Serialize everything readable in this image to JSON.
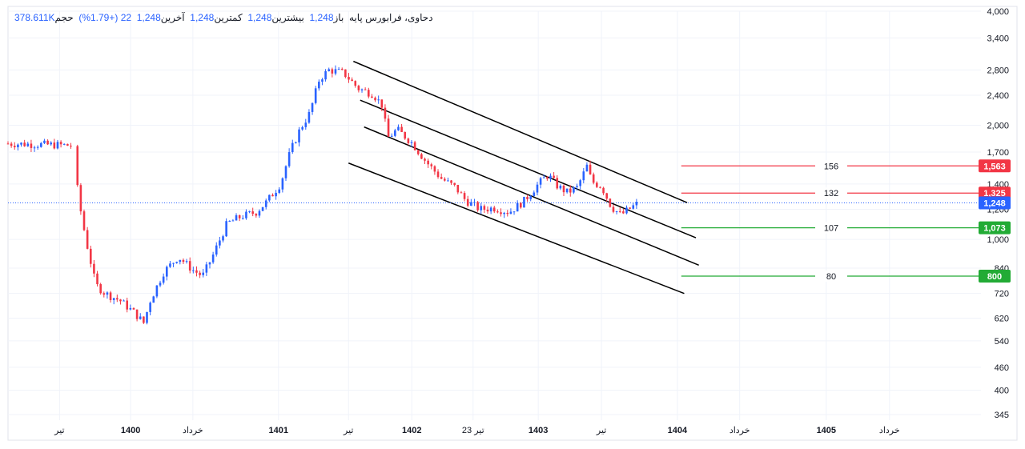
{
  "legend": {
    "symbol": "دحاوی، فرابورس پایه",
    "open_label": "باز",
    "open": "1,248",
    "high_label": "بیشترین",
    "high": "1,248",
    "low_label": "کمترین",
    "low": "1,248",
    "close_label": "آخرین",
    "close": "1,248",
    "change": "22 (+1.79%)",
    "volume_label": "حجم",
    "volume": "378.611K"
  },
  "chart_data": {
    "type": "candlestick",
    "scale": "log",
    "ylim": [
      310,
      4000
    ],
    "y_ticks": [
      345,
      400,
      460,
      540,
      620,
      720,
      840,
      1000,
      1200,
      1400,
      1700,
      2000,
      2400,
      2800,
      3400,
      4000
    ],
    "x_ticks": [
      {
        "label": "تیر",
        "bold": false,
        "pos": 0.053
      },
      {
        "label": "1400",
        "bold": true,
        "pos": 0.126
      },
      {
        "label": "خرداد",
        "bold": false,
        "pos": 0.19
      },
      {
        "label": "1401",
        "bold": true,
        "pos": 0.278
      },
      {
        "label": "تیر",
        "bold": false,
        "pos": 0.35
      },
      {
        "label": "1402",
        "bold": true,
        "pos": 0.415
      },
      {
        "label": "23 تیر",
        "bold": false,
        "pos": 0.478
      },
      {
        "label": "1403",
        "bold": true,
        "pos": 0.545
      },
      {
        "label": "تیر",
        "bold": false,
        "pos": 0.61
      },
      {
        "label": "1404",
        "bold": true,
        "pos": 0.688
      },
      {
        "label": "خرداد",
        "bold": false,
        "pos": 0.752
      },
      {
        "label": "1405",
        "bold": true,
        "pos": 0.841
      },
      {
        "label": "خرداد",
        "bold": false,
        "pos": 0.906
      }
    ],
    "price_path": [
      [
        0.0,
        1790
      ],
      [
        0.065,
        1770
      ],
      [
        0.068,
        1760
      ],
      [
        0.072,
        1300
      ],
      [
        0.08,
        1000
      ],
      [
        0.09,
        760
      ],
      [
        0.1,
        720
      ],
      [
        0.115,
        690
      ],
      [
        0.13,
        640
      ],
      [
        0.14,
        600
      ],
      [
        0.145,
        680
      ],
      [
        0.16,
        820
      ],
      [
        0.175,
        900
      ],
      [
        0.19,
        830
      ],
      [
        0.2,
        800
      ],
      [
        0.21,
        900
      ],
      [
        0.225,
        1100
      ],
      [
        0.24,
        1150
      ],
      [
        0.255,
        1180
      ],
      [
        0.265,
        1250
      ],
      [
        0.28,
        1400
      ],
      [
        0.29,
        1700
      ],
      [
        0.3,
        1950
      ],
      [
        0.31,
        2150
      ],
      [
        0.32,
        2650
      ],
      [
        0.33,
        2800
      ],
      [
        0.345,
        2750
      ],
      [
        0.36,
        2500
      ],
      [
        0.375,
        2420
      ],
      [
        0.385,
        2250
      ],
      [
        0.39,
        1850
      ],
      [
        0.4,
        1950
      ],
      [
        0.415,
        1800
      ],
      [
        0.43,
        1600
      ],
      [
        0.445,
        1450
      ],
      [
        0.46,
        1370
      ],
      [
        0.47,
        1270
      ],
      [
        0.485,
        1200
      ],
      [
        0.5,
        1210
      ],
      [
        0.515,
        1180
      ],
      [
        0.53,
        1260
      ],
      [
        0.545,
        1400
      ],
      [
        0.555,
        1480
      ],
      [
        0.565,
        1380
      ],
      [
        0.575,
        1330
      ],
      [
        0.585,
        1370
      ],
      [
        0.595,
        1560
      ],
      [
        0.6,
        1420
      ],
      [
        0.61,
        1380
      ],
      [
        0.62,
        1220
      ],
      [
        0.63,
        1160
      ],
      [
        0.64,
        1210
      ],
      [
        0.648,
        1248
      ]
    ],
    "current_price": 1248,
    "current_price_label": "1,248",
    "levels": [
      {
        "value": 1563,
        "label": "156",
        "tag": "1,563",
        "color": "#f23645"
      },
      {
        "value": 1325,
        "label": "132",
        "tag": "1,325",
        "color": "#f23645"
      },
      {
        "value": 1073,
        "label": "107",
        "tag": "1,073",
        "color": "#22ab35"
      },
      {
        "value": 800,
        "label": "80",
        "tag": "800",
        "color": "#22ab35"
      }
    ],
    "channel_lines": 4,
    "colors": {
      "up": "#2962ff",
      "down": "#f23645",
      "grid": "#f0f3fa",
      "last": "#2962ff"
    }
  }
}
